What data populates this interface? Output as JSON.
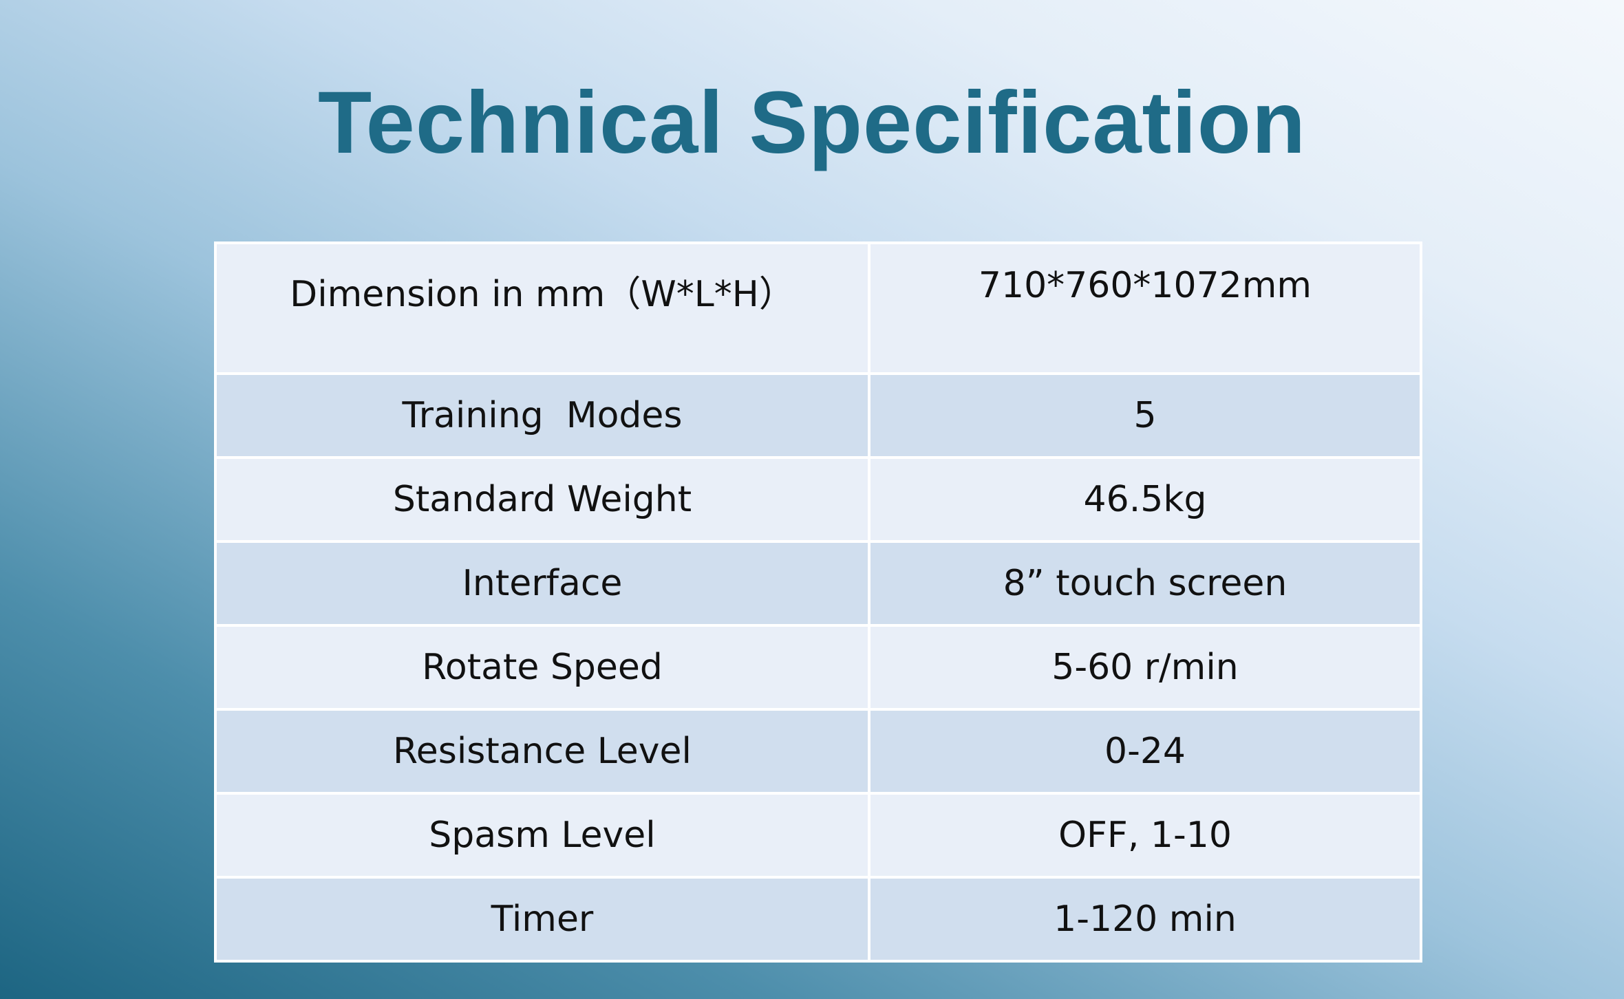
{
  "title": "Technical Specification",
  "table": {
    "rows": [
      [
        "Dimension in mm（W*L*H）",
        "710*760*1072mm"
      ],
      [
        "Training  Modes",
        "5"
      ],
      [
        "Standard Weight",
        "46.5kg"
      ],
      [
        "Interface",
        "8” touch screen"
      ],
      [
        "Rotate Speed",
        "5-60 r/min"
      ],
      [
        "Resistance Level",
        "0-24"
      ],
      [
        "Spasm Level",
        "OFF, 1-10"
      ],
      [
        "Timer",
        "1-120 min"
      ]
    ]
  }
}
